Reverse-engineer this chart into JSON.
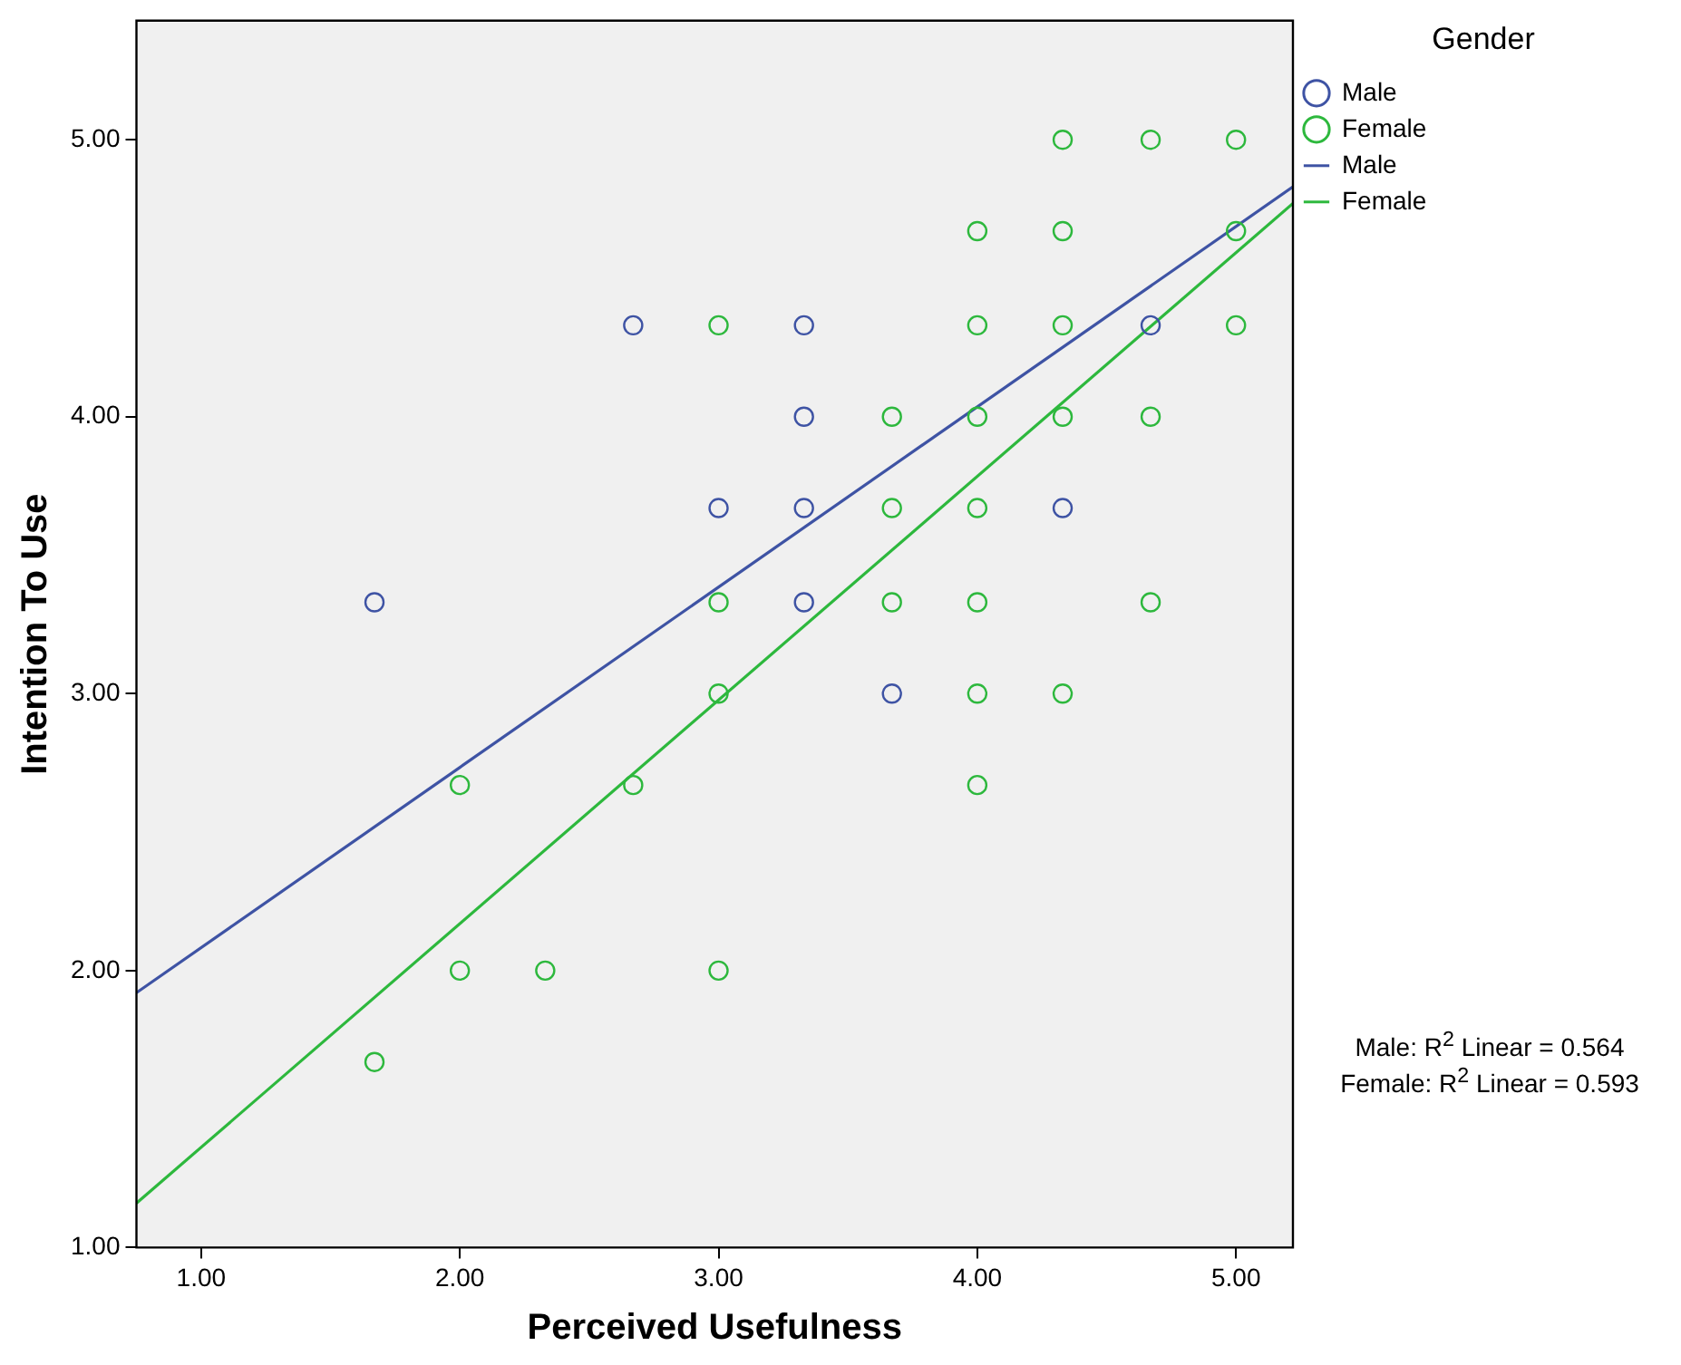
{
  "chart_data": {
    "type": "scatter",
    "xlabel": "Perceived Usefulness",
    "ylabel": "Intention To Use",
    "legend_title": "Gender",
    "legend": "top right",
    "grid": false,
    "marker": "circle",
    "xlim": [
      0.75,
      5.22
    ],
    "ylim": [
      1.0,
      5.43
    ],
    "xticks": [
      {
        "value": 1,
        "label": "1.00"
      },
      {
        "value": 2,
        "label": "2.00"
      },
      {
        "value": 3,
        "label": "3.00"
      },
      {
        "value": 4,
        "label": "4.00"
      },
      {
        "value": 5,
        "label": "5.00"
      }
    ],
    "yticks": [
      {
        "value": 1,
        "label": "1.00"
      },
      {
        "value": 2,
        "label": "2.00"
      },
      {
        "value": 3,
        "label": "3.00"
      },
      {
        "value": 4,
        "label": "4.00"
      },
      {
        "value": 5,
        "label": "5.00"
      }
    ],
    "annotations": [
      "Male: R$^{2}$ Linear = 0.564",
      "Female: R$^{2}$ Linear = 0.593"
    ],
    "series": [
      {
        "name": "Male",
        "color": "#3e53a4",
        "x": [
          1.67,
          2.67,
          3.33,
          4.67,
          3.33,
          3.0,
          3.33,
          4.33,
          3.33,
          3.67
        ],
        "values": [
          3.33,
          4.33,
          4.33,
          4.33,
          4.0,
          3.67,
          3.67,
          3.67,
          3.33,
          3.0
        ]
      },
      {
        "name": "Female",
        "color": "#2db83d",
        "x": [
          4.33,
          4.67,
          5.0,
          4.0,
          4.33,
          5.0,
          3.0,
          4.0,
          4.33,
          5.0,
          3.67,
          4.0,
          4.33,
          4.67,
          3.67,
          4.0,
          3.0,
          3.67,
          4.0,
          4.67,
          3.0,
          4.0,
          4.33,
          4.0,
          2.0,
          2.67,
          2.0,
          2.33,
          3.0,
          1.67
        ],
        "values": [
          5.0,
          5.0,
          5.0,
          4.67,
          4.67,
          4.67,
          4.33,
          4.33,
          4.33,
          4.33,
          4.0,
          4.0,
          4.0,
          4.0,
          3.67,
          3.67,
          3.33,
          3.33,
          3.33,
          3.33,
          3.0,
          3.0,
          3.0,
          2.67,
          2.67,
          2.67,
          2.0,
          2.0,
          2.0,
          1.67
        ]
      },
      {
        "name": "Male",
        "type": "line",
        "line_style": "solid",
        "marker": "none",
        "color": "#3e53a4",
        "x": [
          0.75,
          5.22
        ],
        "values": [
          1.92,
          4.83
        ]
      },
      {
        "name": "Female",
        "type": "line",
        "line_style": "solid",
        "marker": "none",
        "color": "#2db83d",
        "x": [
          0.75,
          5.22
        ],
        "values": [
          1.16,
          4.77
        ]
      }
    ]
  }
}
